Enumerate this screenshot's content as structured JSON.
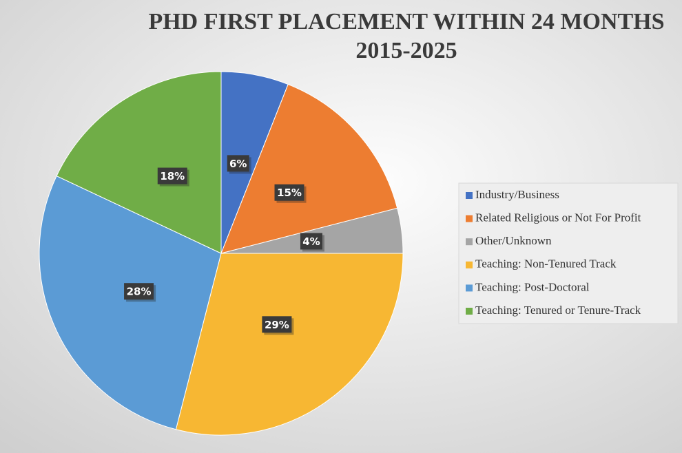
{
  "chart_data": {
    "type": "pie",
    "title": "PHD FIRST PLACEMENT WITHIN 24 MONTHS",
    "subtitle": "2015-2025",
    "categories": [
      "Industry/Business",
      "Related Religious or Not For Profit",
      "Other/Unknown",
      "Teaching: Non-Tenured Track",
      "Teaching: Post-Doctoral",
      "Teaching: Tenured or Tenure-Track"
    ],
    "values": [
      6,
      15,
      4,
      29,
      28,
      18
    ],
    "value_labels": [
      "6%",
      "15%",
      "4%",
      "29%",
      "28%",
      "18%"
    ],
    "colors": [
      "#4472c4",
      "#ed7d31",
      "#a5a5a5",
      "#f7b733",
      "#5b9bd5",
      "#70ad47"
    ],
    "legend": "right"
  }
}
